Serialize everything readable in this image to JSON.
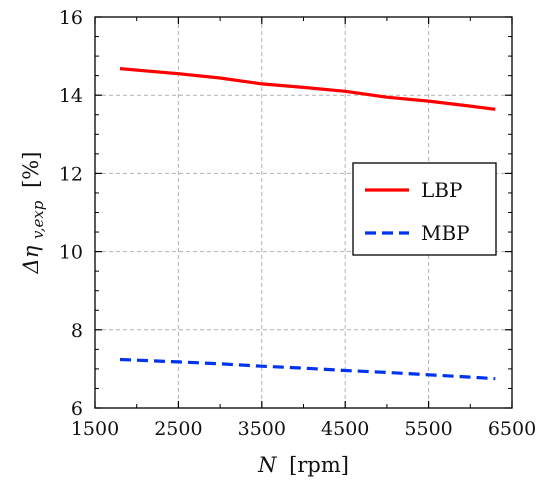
{
  "chart_data": {
    "type": "line",
    "xlabel_symbol": "N",
    "xlabel_unit": "[rpm]",
    "ylabel_symbol": "Δη",
    "ylabel_subscript": "v,exp",
    "ylabel_unit": "[%]",
    "xlim": [
      1500,
      6500
    ],
    "ylim": [
      6,
      16
    ],
    "xticks": [
      1500,
      2500,
      3500,
      4500,
      5500,
      6500
    ],
    "yticks": [
      6,
      8,
      10,
      12,
      14,
      16
    ],
    "grid": true,
    "legend_position": "center-right",
    "series": [
      {
        "name": "LBP",
        "color": "#ff0000",
        "style": "solid",
        "x": [
          1800,
          2500,
          3000,
          3500,
          4000,
          4500,
          5000,
          5500,
          6000,
          6300
        ],
        "y": [
          14.68,
          14.55,
          14.44,
          14.29,
          14.2,
          14.1,
          13.95,
          13.85,
          13.72,
          13.64
        ]
      },
      {
        "name": "MBP",
        "color": "#0033ee",
        "style": "dashed",
        "x": [
          1800,
          2500,
          3000,
          3500,
          4000,
          4500,
          5000,
          5500,
          6000,
          6300
        ],
        "y": [
          7.24,
          7.18,
          7.13,
          7.07,
          7.02,
          6.96,
          6.91,
          6.85,
          6.79,
          6.75
        ]
      }
    ]
  }
}
